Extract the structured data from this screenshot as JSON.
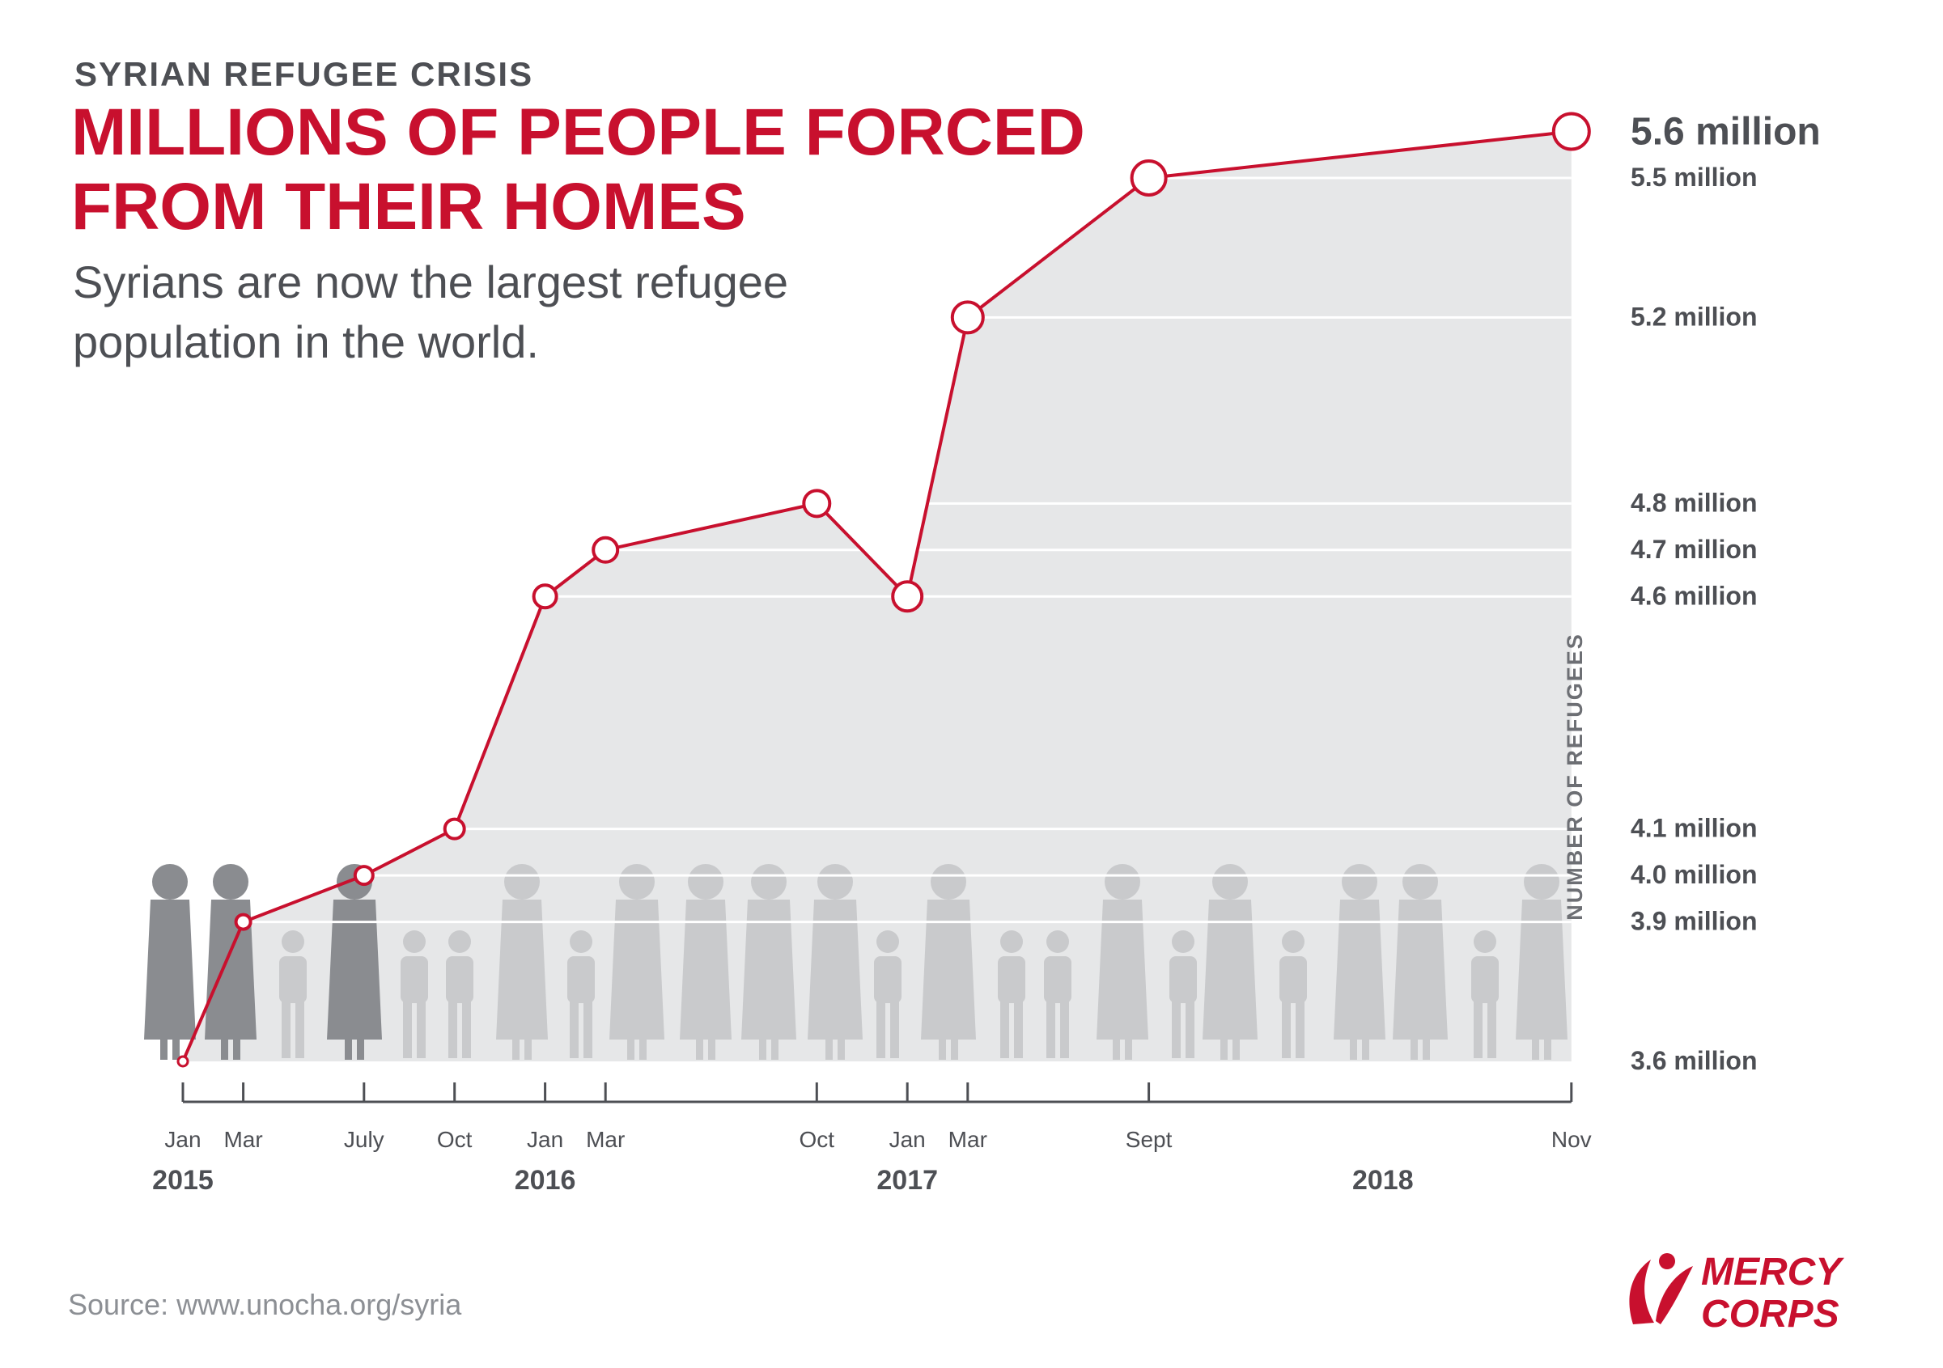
{
  "header": {
    "kicker": "SYRIAN REFUGEE CRISIS",
    "title_line1": "MILLIONS OF PEOPLE FORCED",
    "title_line2": "FROM THEIR HOMES",
    "subtitle": "Syrians are now the largest refugee population in the world."
  },
  "footer": {
    "source": "Source: www.unocha.org/syria",
    "logo_line1": "MERCY",
    "logo_line2": "CORPS"
  },
  "colors": {
    "accent": "#c8102e",
    "text": "#4d4f54",
    "area_fill": "#e6e7e8",
    "figure_light": "#c9cacc",
    "figure_dark": "#8a8c90",
    "axis": "#4d4f54"
  },
  "chart_data": {
    "type": "area",
    "ylabel": "NUMBER OF REFUGEES",
    "grid": true,
    "value_label_position": "right",
    "points": [
      {
        "date": "2015-01",
        "month": "Jan",
        "year_label": "2015",
        "value": 3.6,
        "label": ""
      },
      {
        "date": "2015-03",
        "month": "Mar",
        "year_label": "",
        "value": 3.9,
        "label": "3.9 million"
      },
      {
        "date": "2015-07",
        "month": "July",
        "year_label": "",
        "value": 4.0,
        "label": "4.0 million"
      },
      {
        "date": "2015-10",
        "month": "Oct",
        "year_label": "",
        "value": 4.1,
        "label": "4.1 million"
      },
      {
        "date": "2016-01",
        "month": "Jan",
        "year_label": "2016",
        "value": 4.6,
        "label": "4.6 million"
      },
      {
        "date": "2016-03",
        "month": "Mar",
        "year_label": "",
        "value": 4.7,
        "label": "4.7 million"
      },
      {
        "date": "2016-10",
        "month": "Oct",
        "year_label": "",
        "value": 4.8,
        "label": "4.8 million"
      },
      {
        "date": "2017-01",
        "month": "Jan",
        "year_label": "2017",
        "value": 4.6,
        "label": ""
      },
      {
        "date": "2017-03",
        "month": "Mar",
        "year_label": "",
        "value": 5.2,
        "label": "5.2 million"
      },
      {
        "date": "2017-09",
        "month": "Sept",
        "year_label": "",
        "value": 5.5,
        "label": "5.5 million"
      },
      {
        "date": "2018-11",
        "month": "Nov",
        "year_label": "",
        "value": 5.6,
        "label": "5.6 million"
      }
    ],
    "extra_axis_labels": [
      {
        "value": 3.6,
        "label": "3.6 million"
      }
    ],
    "extra_year_labels": [
      {
        "date": "2018-01",
        "year_label": "2018"
      }
    ],
    "highlight_label": "5.6 million"
  }
}
